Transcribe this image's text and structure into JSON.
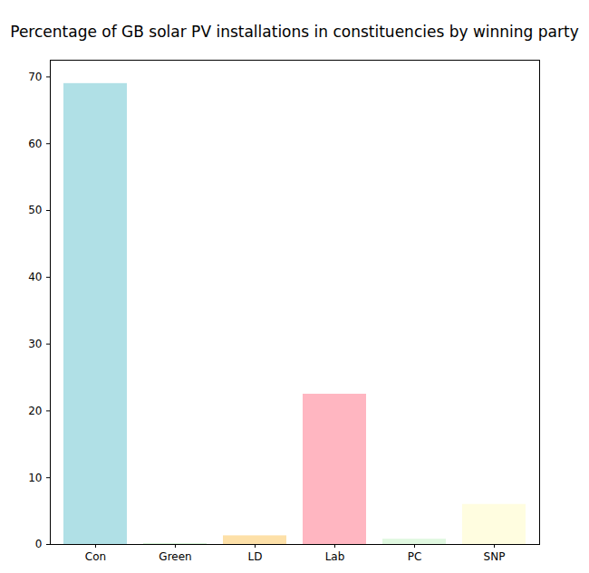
{
  "chart_data": {
    "type": "bar",
    "title": "Percentage of GB solar PV installations in constituencies by winning party",
    "categories": [
      "Con",
      "Green",
      "LD",
      "Lab",
      "PC",
      "SNP"
    ],
    "values": [
      69.0,
      0.1,
      1.3,
      22.5,
      0.8,
      6.0
    ],
    "colors": [
      "#b0e0e6",
      "#c8f0c8",
      "#fde0a8",
      "#ffb6c1",
      "#e0f8e0",
      "#fffde0"
    ],
    "ylim": [
      0,
      72.5
    ],
    "yticks": [
      0,
      10,
      20,
      30,
      40,
      50,
      60,
      70
    ],
    "grid": false
  }
}
